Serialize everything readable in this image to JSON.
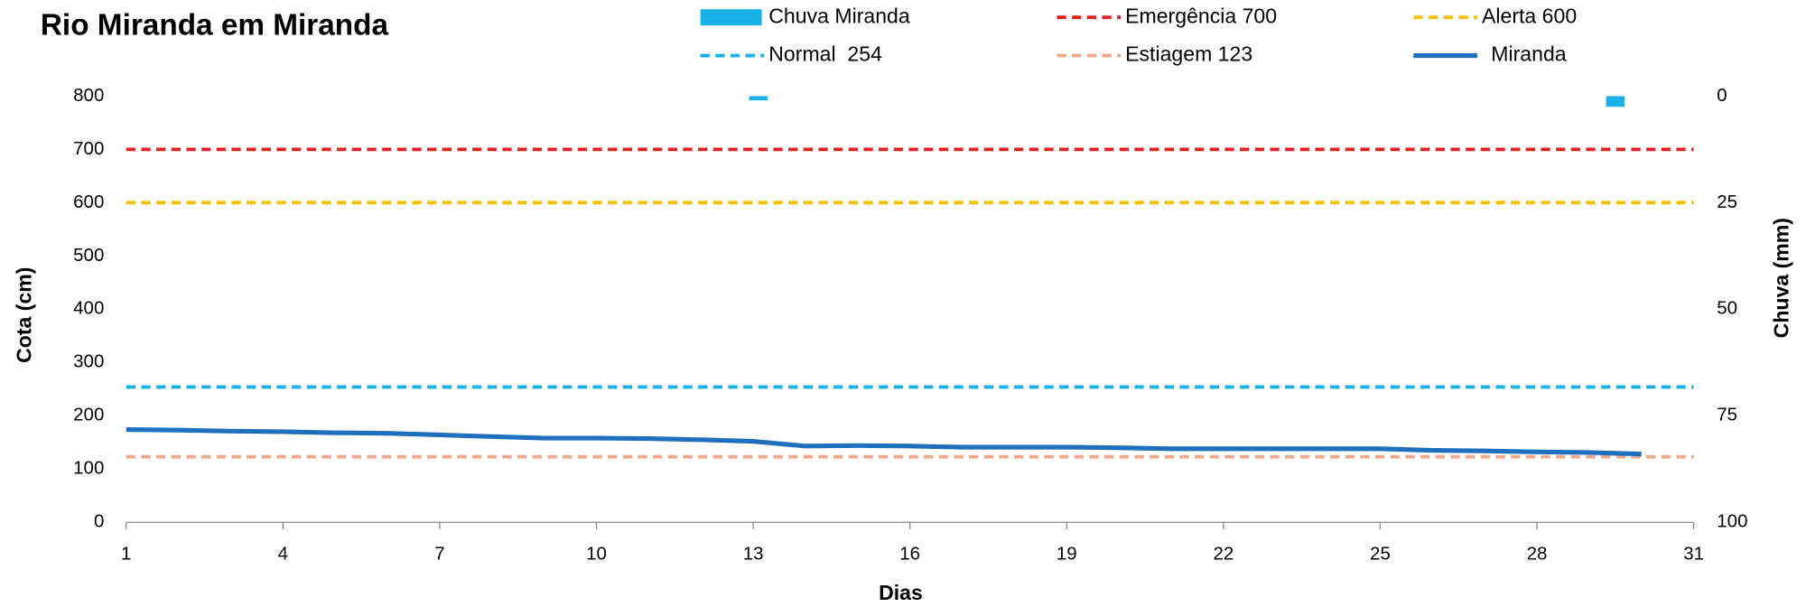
{
  "chart_data": {
    "type": "line",
    "title": "Rio Miranda em Miranda",
    "x_label": "Dias",
    "y_label": "Cota (cm)",
    "y2_label": "Chuva (mm)",
    "xlim": [
      1,
      31
    ],
    "xticks": [
      1,
      4,
      7,
      10,
      13,
      16,
      19,
      22,
      25,
      28,
      31
    ],
    "ylim": [
      0,
      800
    ],
    "yticks": [
      0,
      100,
      200,
      300,
      400,
      500,
      600,
      700,
      800
    ],
    "y2lim": [
      0,
      100
    ],
    "y2_reversed": true,
    "y2ticks": [
      0,
      25,
      50,
      75,
      100
    ],
    "x": [
      1,
      2,
      3,
      4,
      5,
      6,
      7,
      8,
      9,
      10,
      11,
      12,
      13,
      14,
      15,
      16,
      17,
      18,
      19,
      20,
      21,
      22,
      23,
      24,
      25,
      26,
      27,
      28,
      29,
      30
    ],
    "series": [
      {
        "name": "Chuva Miranda",
        "type": "bar",
        "axis": "y2",
        "color": "#1ab0e8",
        "x": [
          13.1,
          29.5
        ],
        "values": [
          1,
          2.5
        ]
      },
      {
        "name": "Miranda",
        "type": "line",
        "color": "#1f6fbf",
        "values": [
          174,
          173,
          171,
          170,
          168,
          167,
          164,
          161,
          158,
          158,
          157,
          155,
          152,
          143,
          144,
          143,
          141,
          141,
          141,
          140,
          138,
          138,
          138,
          138,
          138,
          135,
          134,
          132,
          131,
          128
        ]
      }
    ],
    "reference_lines": [
      {
        "name": "Emergência 700",
        "value": 700,
        "color": "#e32020"
      },
      {
        "name": "Alerta 600",
        "value": 600,
        "color": "#f5c000"
      },
      {
        "name": "Normal  254",
        "value": 254,
        "color": "#1ab0e8"
      },
      {
        "name": "Estiagem 123",
        "value": 123,
        "color": "#f0a88a"
      }
    ]
  }
}
